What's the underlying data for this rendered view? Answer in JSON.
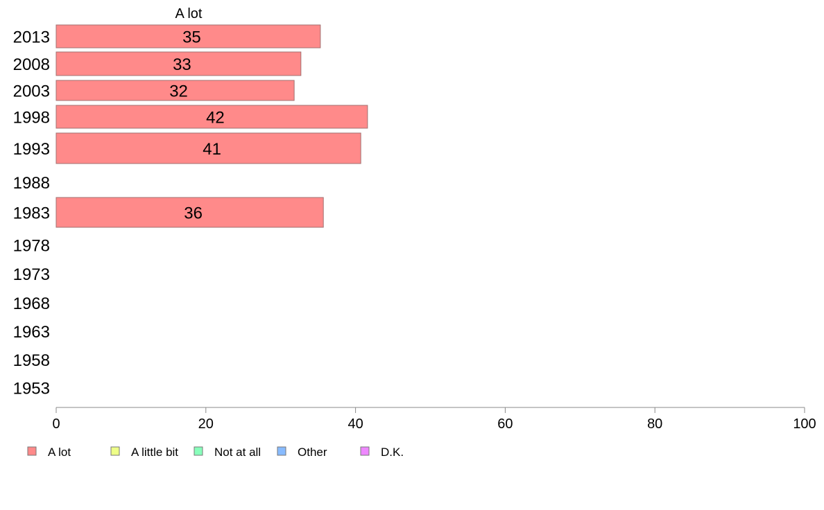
{
  "chart_data": {
    "type": "bar",
    "orientation": "horizontal",
    "stacked": true,
    "title": "",
    "xlabel": "",
    "ylabel": "",
    "xlim": [
      0,
      100
    ],
    "x_ticks": [
      0,
      20,
      40,
      60,
      80,
      100
    ],
    "grid": false,
    "legend_position": "bottom",
    "categories": [
      "2013",
      "2008",
      "2003",
      "1998",
      "1993",
      "1988",
      "1983",
      "1978",
      "1973",
      "1968",
      "1963",
      "1958",
      "1953"
    ],
    "series": [
      {
        "name": "A lot",
        "color": "#ff8a8a",
        "values": [
          35,
          33,
          32,
          42,
          41,
          null,
          36,
          null,
          null,
          null,
          null,
          null,
          null
        ],
        "bar_lengths": [
          35.3,
          32.7,
          31.8,
          41.6,
          40.7,
          null,
          35.7,
          null,
          null,
          null,
          null,
          null,
          null
        ]
      },
      {
        "name": "A little bit",
        "color": "#eeff88",
        "values": [
          null,
          null,
          null,
          null,
          null,
          null,
          null,
          null,
          null,
          null,
          null,
          null,
          null
        ]
      },
      {
        "name": "Not at all",
        "color": "#88ffbb",
        "values": [
          null,
          null,
          null,
          null,
          null,
          null,
          null,
          null,
          null,
          null,
          null,
          null,
          null
        ]
      },
      {
        "name": "Other",
        "color": "#88bbff",
        "values": [
          null,
          null,
          null,
          null,
          null,
          null,
          null,
          null,
          null,
          null,
          null,
          null,
          null
        ]
      },
      {
        "name": "D.K.",
        "color": "#ee88ff",
        "values": [
          null,
          null,
          null,
          null,
          null,
          null,
          null,
          null,
          null,
          null,
          null,
          null,
          null
        ]
      }
    ],
    "column_header": "A lot"
  }
}
